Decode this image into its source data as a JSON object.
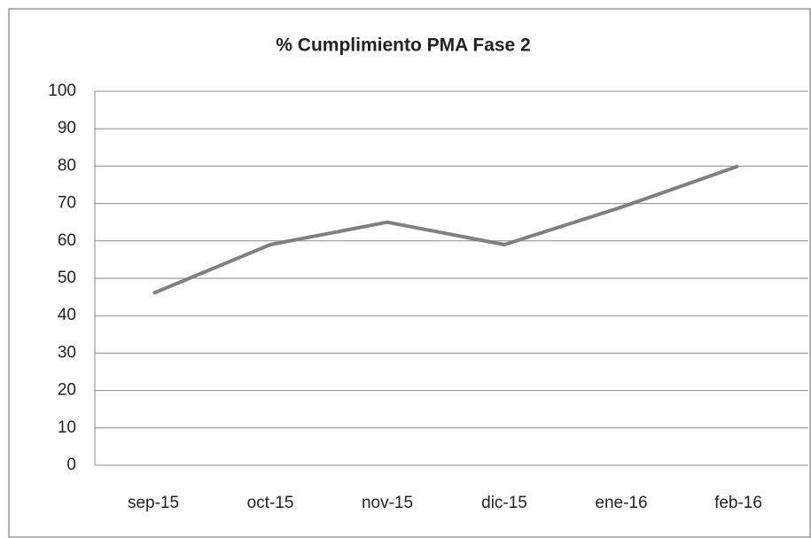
{
  "chart_data": {
    "type": "line",
    "title": "% Cumplimiento PMA Fase 2",
    "categories": [
      "sep-15",
      "oct-15",
      "nov-15",
      "dic-15",
      "ene-16",
      "feb-16"
    ],
    "values": [
      46,
      59,
      65,
      59,
      69,
      80
    ],
    "color": "#808080",
    "ylim": [
      0,
      100
    ],
    "yticks": [
      0,
      10,
      20,
      30,
      40,
      50,
      60,
      70,
      80,
      90,
      100
    ],
    "grid": true
  }
}
